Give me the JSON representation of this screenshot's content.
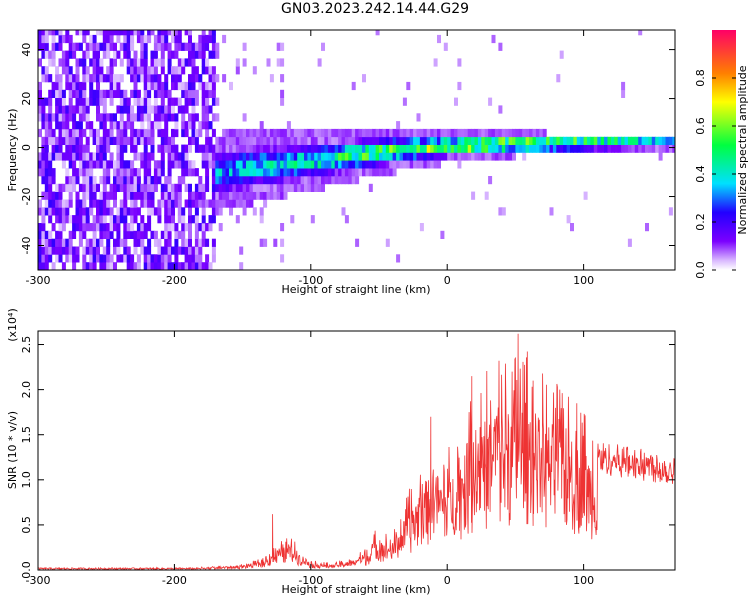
{
  "title": "GN03.2023.242.14.44.G29",
  "chart_data": [
    {
      "type": "heatmap",
      "xlabel": "Height of straight line (km)",
      "ylabel": "Frequency (Hz)",
      "xlim": [
        -300,
        167
      ],
      "ylim": [
        -50,
        48
      ],
      "xticks": [
        -300,
        -200,
        -100,
        0,
        100
      ],
      "yticks": [
        -40,
        -20,
        0,
        20,
        40
      ],
      "colorbar": {
        "label": "Normalized spectral amplitude",
        "range": [
          0.0,
          1.0
        ],
        "ticks": [
          "0.0",
          "0.2",
          "0.4",
          "0.6",
          "0.8"
        ],
        "stops": [
          "#ffffff",
          "#d9b8ff",
          "#7b00ff",
          "#2200ff",
          "#00e0ff",
          "#00ff40",
          "#ffff00",
          "#ff7f00",
          "#ff0066"
        ]
      },
      "noise_region_x": [
        -300,
        -172
      ],
      "signal_band": {
        "x": [
          -190,
          -150,
          -100,
          -60,
          -30,
          0,
          50,
          100,
          167
        ],
        "center_hz": [
          -14,
          -10,
          -7,
          -4,
          -2,
          -1,
          0,
          0,
          0
        ],
        "halfwidth_hz": [
          10,
          9,
          7,
          6,
          5,
          4,
          3,
          2,
          1.5
        ],
        "peak_amplitude": [
          0.3,
          0.35,
          0.42,
          0.5,
          0.55,
          0.6,
          0.7,
          0.85,
          0.9
        ]
      }
    },
    {
      "type": "line",
      "xlabel": "Height of straight line (km)",
      "ylabel": "SNR (10 * v/v)",
      "yscale_label": "(x10⁴)",
      "xlim": [
        -300,
        167
      ],
      "ylim": [
        0.0,
        2.65
      ],
      "xticks": [
        -300,
        -200,
        -100,
        0,
        100
      ],
      "yticks": [
        "0.0",
        "0.5",
        "1.0",
        "1.5",
        "2.0",
        "2.5"
      ],
      "series": [
        {
          "color": "#ee3333",
          "x": [
            -300,
            -250,
            -200,
            -170,
            -150,
            -135,
            -125,
            -115,
            -100,
            -85,
            -70,
            -60,
            -52,
            -40,
            -30,
            -20,
            -10,
            0,
            15,
            30,
            45,
            55,
            65,
            80,
            95,
            110,
            130,
            150,
            167
          ],
          "y": [
            0.01,
            0.01,
            0.02,
            0.03,
            0.05,
            0.1,
            0.22,
            0.28,
            0.08,
            0.06,
            0.1,
            0.18,
            0.35,
            0.3,
            0.6,
            0.9,
            1.1,
            1.0,
            1.4,
            1.7,
            1.8,
            1.9,
            1.7,
            1.6,
            1.4,
            1.25,
            1.2,
            1.15,
            1.1
          ],
          "peaks": [
            {
              "x": 52,
              "y": 2.62
            },
            {
              "x": 38,
              "y": 2.32
            },
            {
              "x": 18,
              "y": 2.15
            },
            {
              "x": 63,
              "y": 2.1
            },
            {
              "x": 95,
              "y": 1.85
            },
            {
              "x": -12,
              "y": 1.7
            },
            {
              "x": -128,
              "y": 0.62
            }
          ]
        }
      ]
    }
  ]
}
